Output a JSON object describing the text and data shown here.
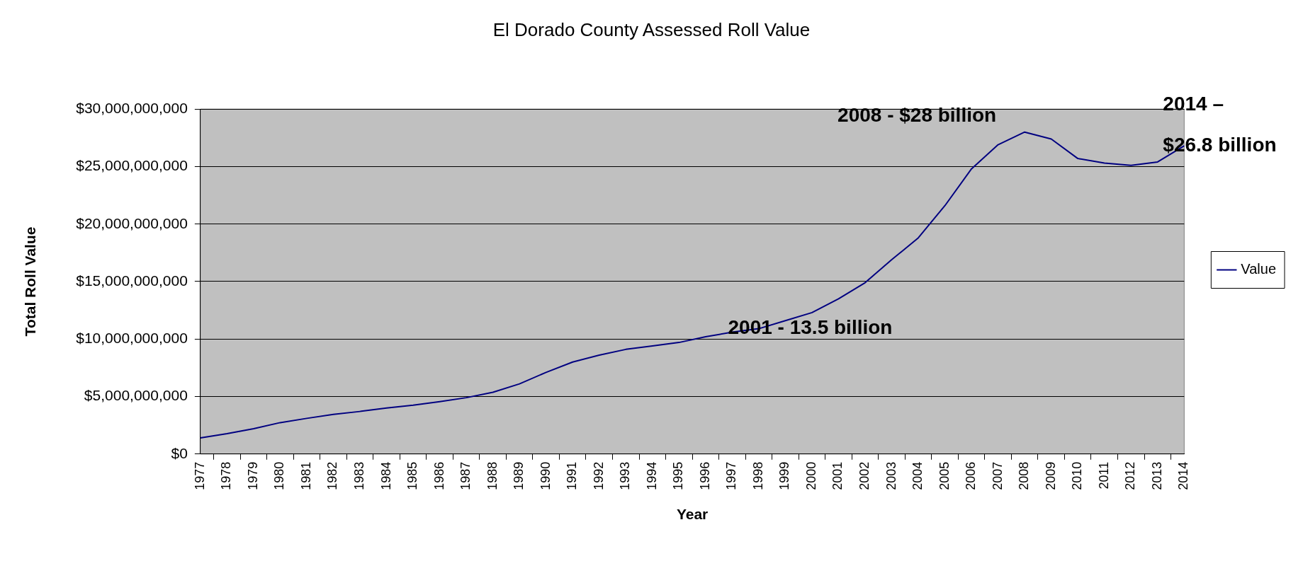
{
  "chart_data": {
    "type": "line",
    "title": "El Dorado County Assessed Roll Value",
    "xlabel": "Year",
    "ylabel": "Total Roll Value",
    "categories": [
      "1977",
      "1978",
      "1979",
      "1980",
      "1981",
      "1982",
      "1983",
      "1984",
      "1985",
      "1986",
      "1987",
      "1988",
      "1989",
      "1990",
      "1991",
      "1992",
      "1993",
      "1994",
      "1995",
      "1996",
      "1997",
      "1998",
      "1999",
      "2000",
      "2001",
      "2002",
      "2003",
      "2004",
      "2005",
      "2006",
      "2007",
      "2008",
      "2009",
      "2010",
      "2011",
      "2012",
      "2013",
      "2014"
    ],
    "series": [
      {
        "name": "Value",
        "color": "#000080",
        "values": [
          1400000000,
          1770000000,
          2200000000,
          2730000000,
          3100000000,
          3450000000,
          3700000000,
          4000000000,
          4250000000,
          4560000000,
          4900000000,
          5370000000,
          6100000000,
          7100000000,
          8000000000,
          8600000000,
          9100000000,
          9400000000,
          9700000000,
          10200000000,
          10600000000,
          10900000000,
          11600000000,
          12300000000,
          13500000000,
          14900000000,
          16900000000,
          18800000000,
          21600000000,
          24800000000,
          26900000000,
          28000000000,
          27400000000,
          25700000000,
          25300000000,
          25100000000,
          25400000000,
          26800000000
        ]
      }
    ],
    "ylim": [
      0,
      30000000000
    ],
    "yticks": [
      {
        "value": 0,
        "label": "$0"
      },
      {
        "value": 5000000000,
        "label": "$5,000,000,000"
      },
      {
        "value": 10000000000,
        "label": "$10,000,000,000"
      },
      {
        "value": 15000000000,
        "label": "$15,000,000,000"
      },
      {
        "value": 20000000000,
        "label": "$20,000,000,000"
      },
      {
        "value": 25000000000,
        "label": "$25,000,000,000"
      },
      {
        "value": 30000000000,
        "label": "$30,000,000,000"
      }
    ],
    "grid": "y",
    "legend": "right",
    "marker": "none",
    "line_style": "solid",
    "annotations": [
      {
        "text": "2008 - $28 billion",
        "x": "2008",
        "y": 28000000000
      },
      {
        "text": "2001 - 13.5 billion",
        "x": "2001",
        "y": 13500000000
      },
      {
        "text": "2014 –",
        "x": "2014",
        "y": 26800000000
      },
      {
        "text": "$26.8 billion",
        "x": "2014",
        "y": 26800000000
      }
    ]
  }
}
